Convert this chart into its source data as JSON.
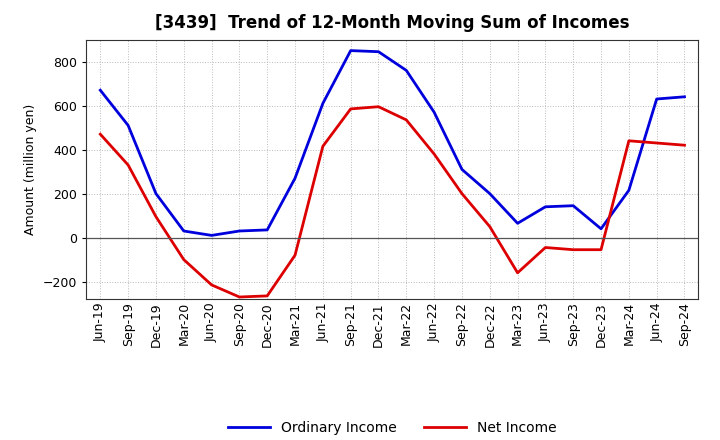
{
  "title": "[3439]  Trend of 12-Month Moving Sum of Incomes",
  "ylabel": "Amount (million yen)",
  "x_labels": [
    "Jun-19",
    "Sep-19",
    "Dec-19",
    "Mar-20",
    "Jun-20",
    "Sep-20",
    "Dec-20",
    "Mar-21",
    "Jun-21",
    "Sep-21",
    "Dec-21",
    "Mar-22",
    "Jun-22",
    "Sep-22",
    "Dec-22",
    "Mar-23",
    "Jun-23",
    "Sep-23",
    "Dec-23",
    "Mar-24",
    "Jun-24",
    "Sep-24"
  ],
  "ordinary_income": [
    670,
    510,
    200,
    30,
    10,
    30,
    35,
    270,
    610,
    850,
    845,
    760,
    570,
    310,
    200,
    65,
    140,
    145,
    40,
    215,
    630,
    640
  ],
  "net_income": [
    470,
    330,
    95,
    -100,
    -215,
    -270,
    -265,
    -80,
    415,
    585,
    595,
    535,
    380,
    200,
    50,
    -160,
    -45,
    -55,
    -55,
    440,
    430,
    420
  ],
  "ordinary_color": "#0000dd",
  "net_color": "#dd0000",
  "ylim": [
    -280,
    900
  ],
  "yticks": [
    -200,
    0,
    200,
    400,
    600,
    800
  ],
  "background_color": "#ffffff",
  "grid_color": "#bbbbbb",
  "line_width": 2.0,
  "title_fontsize": 12,
  "axis_fontsize": 9,
  "tick_fontsize": 9,
  "legend_fontsize": 10
}
